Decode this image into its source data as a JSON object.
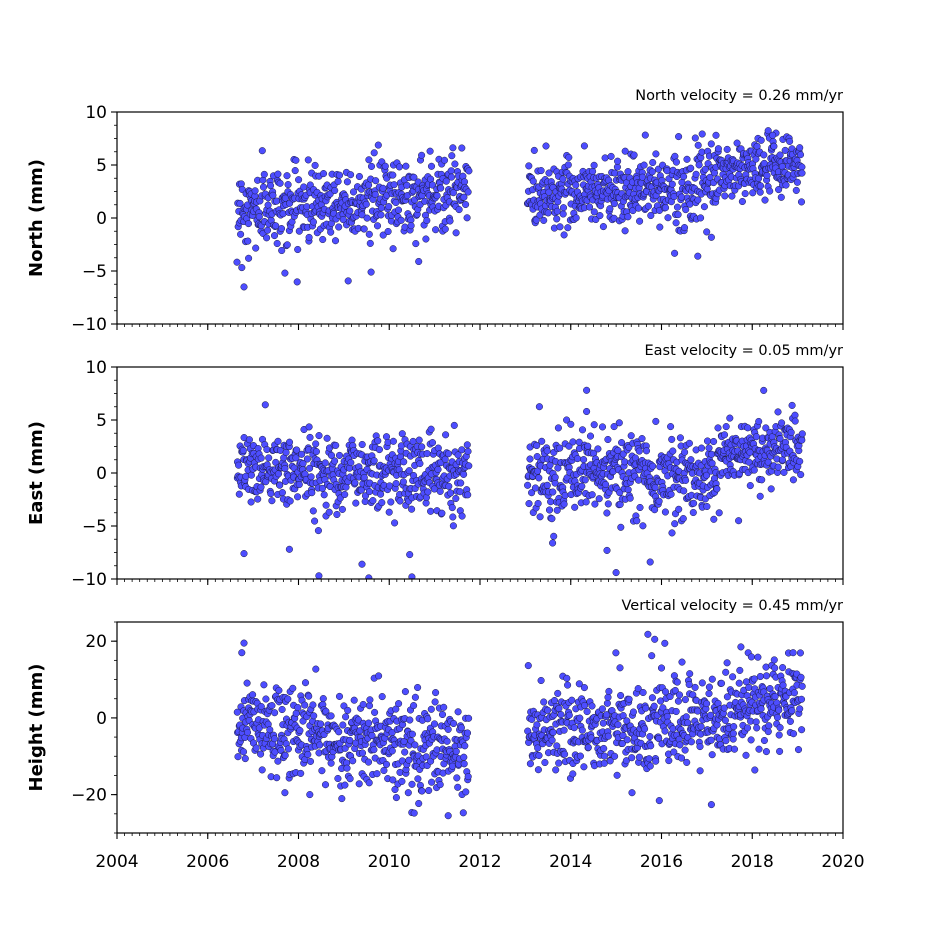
{
  "chart_data": [
    {
      "type": "scatter",
      "title": "North velocity = 0.26 mm/yr",
      "ylabel": "North (mm)",
      "xlim": [
        2004,
        2020
      ],
      "ylim": [
        -10,
        10
      ],
      "yticks": [
        10,
        5,
        0,
        -5,
        -10
      ],
      "ytick_labels": [
        "10",
        "5",
        "0",
        "−5",
        "−10"
      ],
      "marker_color": "#4d4dff",
      "series": [
        {
          "segments": [
            {
              "x_start": 2006.65,
              "x_end": 2011.75,
              "y_start": 0.8,
              "y_end": 2.5,
              "spread": 1.8,
              "n": 500
            },
            {
              "x_start": 2013.05,
              "x_end": 2017.2,
              "y_start": 2.3,
              "y_end": 3.0,
              "spread": 1.6,
              "n": 430
            },
            {
              "x_start": 2017.2,
              "x_end": 2019.1,
              "y_start": 4.2,
              "y_end": 5.2,
              "spread": 1.4,
              "n": 200
            }
          ],
          "outliers": [
            {
              "x": 2006.8,
              "y": -6.5
            },
            {
              "x": 2007.7,
              "y": -5.2
            },
            {
              "x": 2009.6,
              "y": -5.1
            },
            {
              "x": 2010.9,
              "y": 6.3
            },
            {
              "x": 2011.6,
              "y": 6.6
            },
            {
              "x": 2014.3,
              "y": 6.8
            },
            {
              "x": 2015.2,
              "y": 6.3
            },
            {
              "x": 2016.8,
              "y": -3.6
            },
            {
              "x": 2017.2,
              "y": 7.8
            },
            {
              "x": 2018.45,
              "y": 7.8
            },
            {
              "x": 2006.9,
              "y": -3.8
            },
            {
              "x": 2010.65,
              "y": -4.1
            }
          ]
        }
      ]
    },
    {
      "type": "scatter",
      "title": "East velocity = 0.05 mm/yr",
      "ylabel": "East (mm)",
      "xlim": [
        2004,
        2020
      ],
      "ylim": [
        -10,
        10
      ],
      "yticks": [
        10,
        5,
        0,
        -5,
        -10
      ],
      "ytick_labels": [
        "10",
        "5",
        "0",
        "−5",
        "−10"
      ],
      "marker_color": "#4d4dff",
      "series": [
        {
          "segments": [
            {
              "x_start": 2006.65,
              "x_end": 2011.75,
              "y_start": 0.3,
              "y_end": 0.0,
              "spread": 1.8,
              "n": 500
            },
            {
              "x_start": 2013.05,
              "x_end": 2017.3,
              "y_start": 0.2,
              "y_end": -0.3,
              "spread": 1.9,
              "n": 440
            },
            {
              "x_start": 2017.3,
              "x_end": 2019.1,
              "y_start": 2.0,
              "y_end": 2.3,
              "spread": 1.5,
              "n": 190
            }
          ],
          "outliers": [
            {
              "x": 2006.8,
              "y": -7.6
            },
            {
              "x": 2007.8,
              "y": -7.2
            },
            {
              "x": 2008.45,
              "y": -9.7
            },
            {
              "x": 2009.4,
              "y": -8.6
            },
            {
              "x": 2009.55,
              "y": -9.9
            },
            {
              "x": 2010.45,
              "y": -7.7
            },
            {
              "x": 2010.5,
              "y": -9.8
            },
            {
              "x": 2014.35,
              "y": 7.8
            },
            {
              "x": 2014.35,
              "y": 5.8
            },
            {
              "x": 2015.0,
              "y": -9.4
            },
            {
              "x": 2015.75,
              "y": -8.4
            },
            {
              "x": 2014.8,
              "y": -7.3
            },
            {
              "x": 2013.6,
              "y": -6.6
            },
            {
              "x": 2017.7,
              "y": -4.5
            }
          ]
        }
      ]
    },
    {
      "type": "scatter",
      "title": "Vertical velocity = 0.45 mm/yr",
      "ylabel": "Height (mm)",
      "xlim": [
        2004,
        2020
      ],
      "ylim": [
        -30,
        25
      ],
      "yticks": [
        20,
        0,
        -20
      ],
      "ytick_labels": [
        "20",
        "0",
        "−20"
      ],
      "xticks": [
        2004,
        2006,
        2008,
        2010,
        2012,
        2014,
        2016,
        2018,
        2020
      ],
      "xtick_labels": [
        "2004",
        "2006",
        "2008",
        "2010",
        "2012",
        "2014",
        "2016",
        "2018",
        "2020"
      ],
      "marker_color": "#4d4dff",
      "series": [
        {
          "segments": [
            {
              "x_start": 2006.65,
              "x_end": 2011.75,
              "y_start": -2.0,
              "y_end": -9.0,
              "spread": 6.0,
              "n": 520
            },
            {
              "x_start": 2013.05,
              "x_end": 2017.3,
              "y_start": -3.0,
              "y_end": -2.0,
              "spread": 6.0,
              "n": 430
            },
            {
              "x_start": 2017.3,
              "x_end": 2019.1,
              "y_start": 1.0,
              "y_end": 6.0,
              "spread": 5.5,
              "n": 190
            }
          ],
          "outliers": [
            {
              "x": 2006.8,
              "y": 19.5
            },
            {
              "x": 2006.75,
              "y": 17.0
            },
            {
              "x": 2015.7,
              "y": 21.8
            },
            {
              "x": 2015.85,
              "y": 20.5
            },
            {
              "x": 2017.75,
              "y": 18.5
            },
            {
              "x": 2011.3,
              "y": -25.5
            },
            {
              "x": 2010.55,
              "y": -24.8
            },
            {
              "x": 2017.1,
              "y": -22.6
            },
            {
              "x": 2007.7,
              "y": -19.5
            },
            {
              "x": 2008.25,
              "y": -20.0
            },
            {
              "x": 2018.9,
              "y": 17.0
            },
            {
              "x": 2015.35,
              "y": -19.5
            },
            {
              "x": 2016.0,
              "y": 13.0
            }
          ]
        }
      ]
    }
  ]
}
